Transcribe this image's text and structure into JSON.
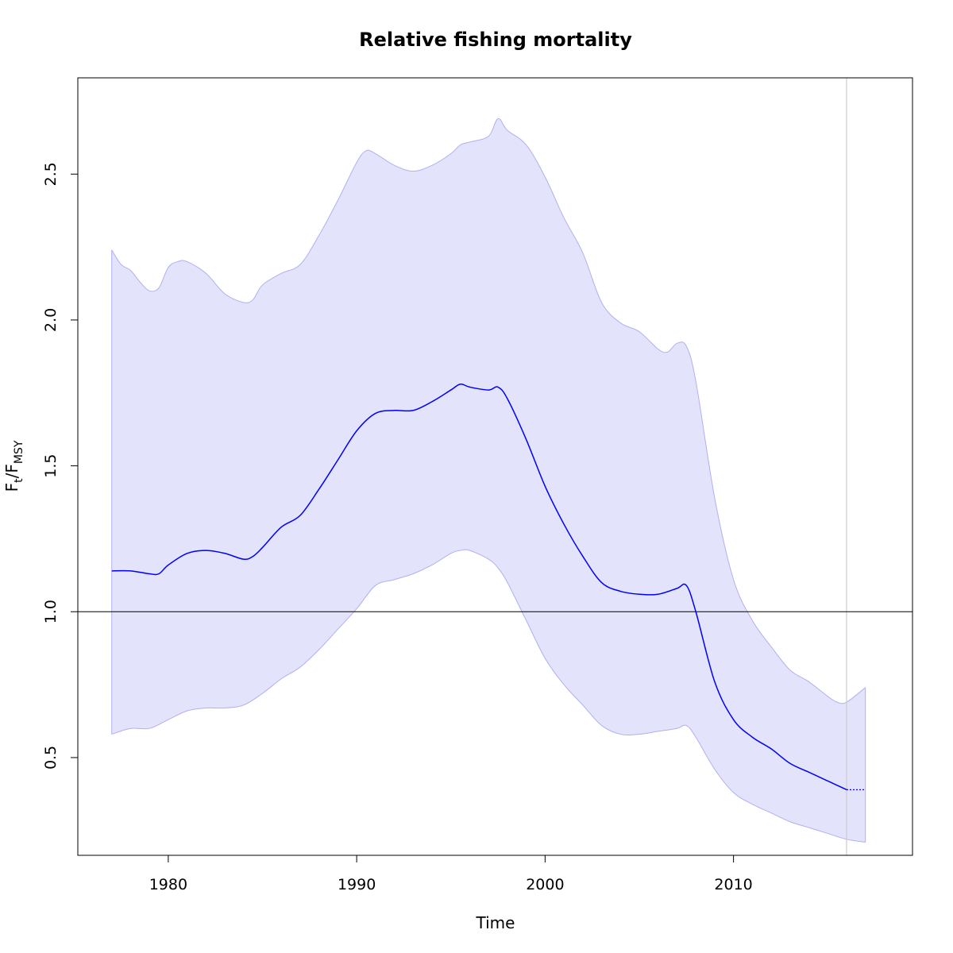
{
  "chart_data": {
    "type": "line",
    "title": "Relative fishing mortality",
    "xlabel": "Time",
    "ylabel": {
      "main": "F",
      "sub1": "t",
      "slash": "/F",
      "sub2": "MSY"
    },
    "xlim": [
      1975.2,
      2019.5
    ],
    "ylim": [
      0.165,
      2.83
    ],
    "x_ticks": [
      1980,
      1990,
      2000,
      2010
    ],
    "y_ticks": [
      0.5,
      1.0,
      1.5,
      2.0,
      2.5
    ],
    "x_tick_labels": [
      "1980",
      "1990",
      "2000",
      "2010"
    ],
    "y_tick_labels": [
      "0.5",
      "1.0",
      "1.5",
      "2.0",
      "2.5"
    ],
    "reference_line_y": 1.0,
    "vertical_line_x": 2016,
    "colors": {
      "estimate": "#0000ff",
      "band_fill": "#e3e3fb",
      "band_edge": "#b0b0f0",
      "reference_line": "#000000",
      "vertical_line": "#cccccc"
    },
    "series": [
      {
        "role": "estimate",
        "x": [
          1977,
          1978,
          1979,
          1979.5,
          1980,
          1981,
          1982,
          1983,
          1984,
          1984.5,
          1985,
          1986,
          1987,
          1988,
          1989,
          1990,
          1991,
          1992,
          1993,
          1994,
          1995,
          1995.5,
          1996,
          1997,
          1997.5,
          1998,
          1999,
          2000,
          2001,
          2002,
          2003,
          2004,
          2005,
          2006,
          2007,
          2007.5,
          2008,
          2009,
          2010,
          2011,
          2012,
          2013,
          2014,
          2015,
          2016
        ],
        "y": [
          1.14,
          1.14,
          1.13,
          1.13,
          1.16,
          1.2,
          1.21,
          1.2,
          1.18,
          1.19,
          1.22,
          1.29,
          1.33,
          1.42,
          1.52,
          1.62,
          1.68,
          1.69,
          1.69,
          1.72,
          1.76,
          1.78,
          1.77,
          1.76,
          1.77,
          1.73,
          1.59,
          1.43,
          1.3,
          1.19,
          1.1,
          1.07,
          1.06,
          1.06,
          1.08,
          1.09,
          1.0,
          0.76,
          0.63,
          0.57,
          0.53,
          0.48,
          0.45,
          0.42,
          0.39
        ]
      },
      {
        "role": "prediction",
        "x": [
          2016,
          2017
        ],
        "y": [
          0.39,
          0.39
        ]
      },
      {
        "role": "upper",
        "x": [
          1977,
          1977.5,
          1978,
          1978.5,
          1979,
          1979.5,
          1980,
          1980.5,
          1981,
          1982,
          1983,
          1984,
          1984.5,
          1985,
          1986,
          1987,
          1988,
          1989,
          1990,
          1990.5,
          1991,
          1992,
          1993,
          1994,
          1995,
          1995.5,
          1996,
          1997,
          1997.5,
          1998,
          1999,
          2000,
          2001,
          2002,
          2003,
          2004,
          2005,
          2006,
          2006.5,
          2007,
          2007.5,
          2008,
          2009,
          2010,
          2011,
          2012,
          2013,
          2014,
          2015,
          2015.5,
          2016,
          2017
        ],
        "y": [
          2.24,
          2.19,
          2.17,
          2.13,
          2.1,
          2.11,
          2.18,
          2.2,
          2.2,
          2.16,
          2.09,
          2.06,
          2.07,
          2.12,
          2.16,
          2.19,
          2.29,
          2.41,
          2.54,
          2.58,
          2.57,
          2.53,
          2.51,
          2.53,
          2.57,
          2.6,
          2.61,
          2.63,
          2.69,
          2.65,
          2.6,
          2.49,
          2.35,
          2.23,
          2.06,
          1.99,
          1.96,
          1.9,
          1.89,
          1.92,
          1.91,
          1.79,
          1.39,
          1.11,
          0.97,
          0.88,
          0.8,
          0.76,
          0.71,
          0.69,
          0.69,
          0.74
        ]
      },
      {
        "role": "lower",
        "x": [
          1977,
          1978,
          1979,
          1980,
          1981,
          1982,
          1983,
          1984,
          1985,
          1986,
          1987,
          1988,
          1989,
          1990,
          1991,
          1992,
          1993,
          1994,
          1995,
          1995.5,
          1996,
          1997,
          1997.5,
          1998,
          1999,
          2000,
          2001,
          2002,
          2003,
          2004,
          2005,
          2006,
          2007,
          2007.5,
          2008,
          2009,
          2010,
          2011,
          2012,
          2013,
          2014,
          2015,
          2016,
          2017
        ],
        "y": [
          0.58,
          0.6,
          0.6,
          0.63,
          0.66,
          0.67,
          0.67,
          0.68,
          0.72,
          0.77,
          0.81,
          0.87,
          0.94,
          1.01,
          1.09,
          1.11,
          1.13,
          1.16,
          1.2,
          1.21,
          1.21,
          1.18,
          1.15,
          1.1,
          0.97,
          0.84,
          0.75,
          0.68,
          0.61,
          0.58,
          0.58,
          0.59,
          0.6,
          0.61,
          0.57,
          0.46,
          0.38,
          0.34,
          0.31,
          0.28,
          0.26,
          0.24,
          0.22,
          0.21
        ]
      }
    ]
  }
}
